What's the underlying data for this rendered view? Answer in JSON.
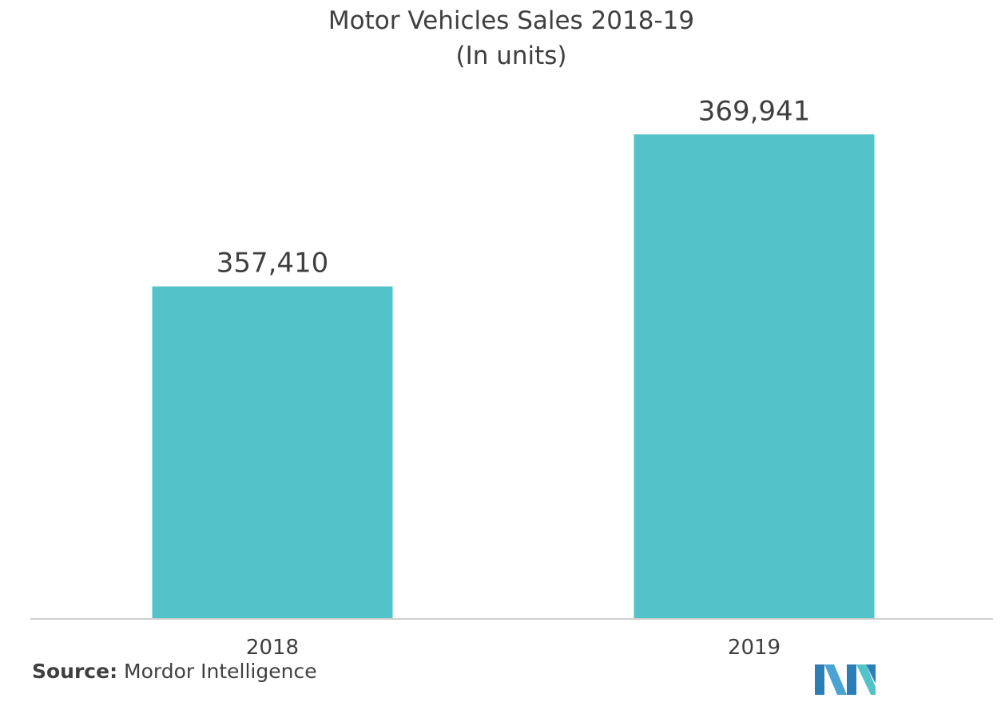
{
  "chart_data": {
    "type": "bar",
    "title": "Motor Vehicles Sales 2018-19",
    "subtitle": "(In units)",
    "categories": [
      "2018",
      "2019"
    ],
    "values": [
      357410,
      369941
    ],
    "value_labels": [
      "357,410",
      "369,941"
    ],
    "xlabel": "",
    "ylabel": "",
    "ylim": [
      330000,
      372000
    ],
    "grid": false,
    "legend": "none",
    "bar_color": "#52c4c9"
  },
  "footer": {
    "source_key": "Source:",
    "source_value": "Mordor Intelligence",
    "logo_icon": "mordor-intelligence-logo-icon"
  }
}
